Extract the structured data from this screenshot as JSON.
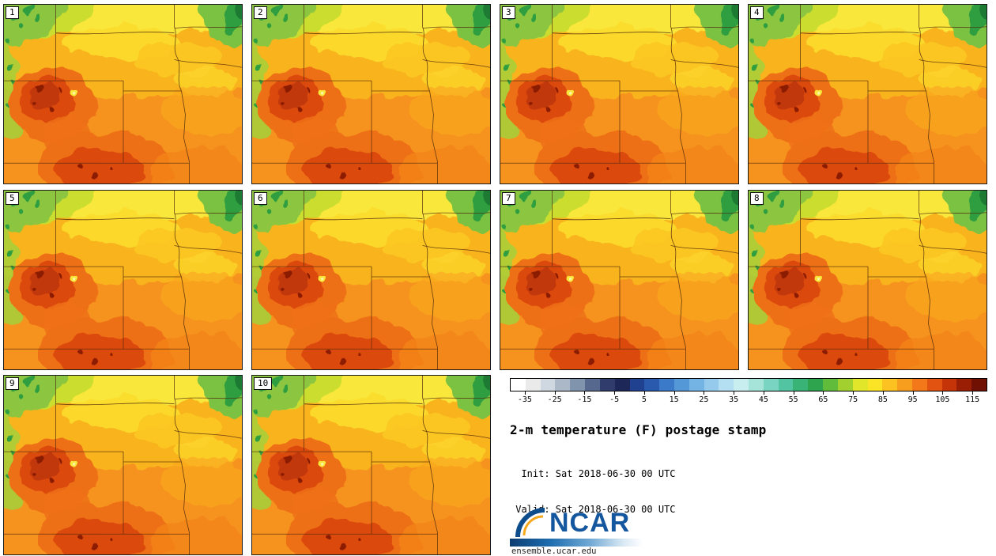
{
  "panels": [
    {
      "label": "1"
    },
    {
      "label": "2"
    },
    {
      "label": "3"
    },
    {
      "label": "4"
    },
    {
      "label": "5"
    },
    {
      "label": "6"
    },
    {
      "label": "7"
    },
    {
      "label": "8"
    },
    {
      "label": "9"
    },
    {
      "label": "10"
    }
  ],
  "colorbar": {
    "ticks": [
      "-35",
      "-25",
      "-15",
      "-5",
      "5",
      "15",
      "25",
      "35",
      "45",
      "55",
      "65",
      "75",
      "85",
      "95",
      "105",
      "115"
    ],
    "value_min": -40,
    "value_max": 120,
    "colors": [
      "#FFFFFF",
      "#EAEAEA",
      "#CFD8E0",
      "#AAB8C8",
      "#8094AE",
      "#56688E",
      "#303C6C",
      "#1E2858",
      "#204090",
      "#2A5AAE",
      "#3A7AC8",
      "#5498D8",
      "#74B4E4",
      "#96CAEC",
      "#B4DEF2",
      "#C8EEF0",
      "#A6E4DA",
      "#7AD4C2",
      "#52C4A2",
      "#3AB476",
      "#2EA44E",
      "#60BC3A",
      "#A2D02E",
      "#E2E62A",
      "#FBE426",
      "#FBC222",
      "#F89E1E",
      "#F2781A",
      "#E25210",
      "#C43408",
      "#9A1E04",
      "#701002"
    ]
  },
  "title": "2-m temperature (F) postage stamp",
  "times": {
    "init": "  Init: Sat 2018-06-30 00 UTC",
    "valid": " Valid: Sat 2018-06-30 00 UTC"
  },
  "logo": {
    "name": "NCAR",
    "site": "ensemble.ucar.edu",
    "blue": "#15579E"
  }
}
